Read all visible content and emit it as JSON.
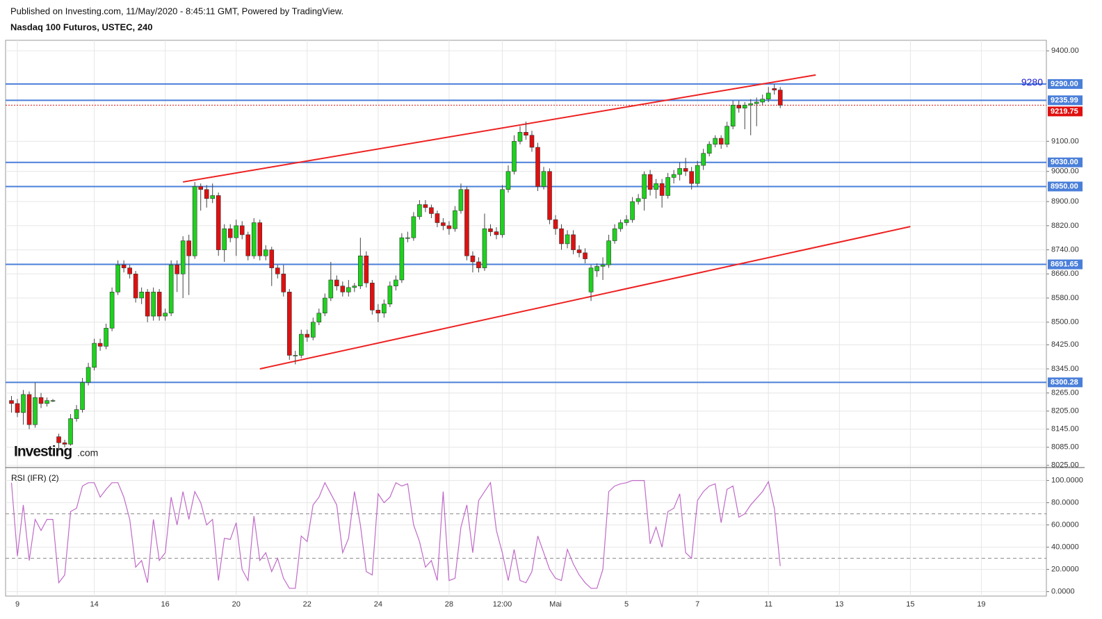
{
  "header": {
    "published": "Published on Investing.com, 11/May/2020 - 8:45:11 GMT, Powered by TradingView.",
    "symbol": "Nasdaq 100 Futuros, USTEC, 240",
    "logo": "Investing",
    "logo_suffix": ".com"
  },
  "chart_data": [
    {
      "type": "candlestick",
      "up_color": "#1ed21e",
      "down_color": "#e01010",
      "grid": true,
      "xlim": [
        -1,
        175
      ],
      "xticks": [
        {
          "value": 1,
          "label": "9"
        },
        {
          "value": 14,
          "label": "14"
        },
        {
          "value": 26,
          "label": "16"
        },
        {
          "value": 38,
          "label": "20"
        },
        {
          "value": 50,
          "label": "22"
        },
        {
          "value": 62,
          "label": "24"
        },
        {
          "value": 74,
          "label": "28"
        },
        {
          "value": 83,
          "label": "12:00"
        },
        {
          "value": 92,
          "label": "Mai"
        },
        {
          "value": 104,
          "label": "5"
        },
        {
          "value": 116,
          "label": "7"
        },
        {
          "value": 128,
          "label": "11"
        },
        {
          "value": 140,
          "label": "13"
        },
        {
          "value": 152,
          "label": "15"
        },
        {
          "value": 164,
          "label": "19"
        }
      ],
      "ylim": [
        8020,
        9435
      ],
      "yticks": [
        {
          "value": 9400,
          "label": "9400.00"
        },
        {
          "value": 9100,
          "label": "9100.00"
        },
        {
          "value": 9000,
          "label": "9000.00"
        },
        {
          "value": 8900,
          "label": "8900.00"
        },
        {
          "value": 8820,
          "label": "8820.00"
        },
        {
          "value": 8740,
          "label": "8740.00"
        },
        {
          "value": 8660,
          "label": "8660.00"
        },
        {
          "value": 8580,
          "label": "8580.00"
        },
        {
          "value": 8500,
          "label": "8500.00"
        },
        {
          "value": 8425,
          "label": "8425.00"
        },
        {
          "value": 8345,
          "label": "8345.00"
        },
        {
          "value": 8265,
          "label": "8265.00"
        },
        {
          "value": 8205,
          "label": "8205.00"
        },
        {
          "value": 8145,
          "label": "8145.00"
        },
        {
          "value": 8085,
          "label": "8085.00"
        },
        {
          "value": 8025,
          "label": "8025.00"
        }
      ],
      "levels": [
        {
          "value": 9290,
          "label": "9290.00"
        },
        {
          "value": 9235.99,
          "label": "9235.99"
        },
        {
          "value": 9030,
          "label": "9030.00"
        },
        {
          "value": 8950,
          "label": "8950.00"
        },
        {
          "value": 8691.65,
          "label": "8691.65"
        },
        {
          "value": 8300.28,
          "label": "8300.28"
        }
      ],
      "level_color": "#4a7fd9",
      "last_price": {
        "value": 9219.75,
        "label": "9219.75"
      },
      "annotation": {
        "text": "9280",
        "value": 9280
      },
      "trendlines": [
        {
          "color": "#ee2020",
          "x": [
            29,
            136
          ],
          "y": [
            8965,
            9320
          ]
        },
        {
          "color": "#ee2020",
          "x": [
            42,
            152
          ],
          "y": [
            8345,
            8817
          ]
        }
      ],
      "candles": [
        [
          8240,
          8255,
          8200,
          8230
        ],
        [
          8230,
          8245,
          8185,
          8200
        ],
        [
          8200,
          8275,
          8160,
          8260
        ],
        [
          8260,
          8270,
          8145,
          8160
        ],
        [
          8160,
          8300,
          8150,
          8250
        ],
        [
          8250,
          8265,
          8215,
          8230
        ],
        [
          8230,
          8250,
          8220,
          8240
        ],
        [
          8240,
          8245,
          8235,
          8240
        ],
        [
          8120,
          8130,
          8080,
          8100
        ],
        [
          8100,
          8110,
          8085,
          8095
        ],
        [
          8095,
          8195,
          8090,
          8180
        ],
        [
          8180,
          8225,
          8170,
          8210
        ],
        [
          8210,
          8315,
          8200,
          8300
        ],
        [
          8300,
          8365,
          8290,
          8350
        ],
        [
          8350,
          8445,
          8340,
          8430
        ],
        [
          8430,
          8445,
          8405,
          8420
        ],
        [
          8420,
          8495,
          8410,
          8480
        ],
        [
          8480,
          8615,
          8470,
          8600
        ],
        [
          8600,
          8705,
          8590,
          8690
        ],
        [
          8690,
          8705,
          8665,
          8680
        ],
        [
          8680,
          8690,
          8645,
          8660
        ],
        [
          8660,
          8670,
          8565,
          8580
        ],
        [
          8580,
          8615,
          8560,
          8600
        ],
        [
          8600,
          8610,
          8500,
          8520
        ],
        [
          8520,
          8615,
          8505,
          8600
        ],
        [
          8600,
          8610,
          8505,
          8520
        ],
        [
          8520,
          8545,
          8505,
          8530
        ],
        [
          8530,
          8705,
          8520,
          8690
        ],
        [
          8690,
          8705,
          8600,
          8660
        ],
        [
          8660,
          8785,
          8580,
          8770
        ],
        [
          8770,
          8790,
          8590,
          8720
        ],
        [
          8720,
          8965,
          8710,
          8950
        ],
        [
          8950,
          8960,
          8870,
          8940
        ],
        [
          8940,
          8955,
          8880,
          8910
        ],
        [
          8910,
          8960,
          8895,
          8920
        ],
        [
          8920,
          8930,
          8720,
          8740
        ],
        [
          8740,
          8825,
          8700,
          8810
        ],
        [
          8810,
          8825,
          8765,
          8780
        ],
        [
          8780,
          8840,
          8720,
          8820
        ],
        [
          8820,
          8835,
          8775,
          8790
        ],
        [
          8790,
          8800,
          8705,
          8720
        ],
        [
          8720,
          8845,
          8710,
          8830
        ],
        [
          8830,
          8840,
          8705,
          8720
        ],
        [
          8720,
          8755,
          8705,
          8740
        ],
        [
          8740,
          8750,
          8620,
          8680
        ],
        [
          8680,
          8690,
          8645,
          8660
        ],
        [
          8660,
          8690,
          8585,
          8600
        ],
        [
          8600,
          8610,
          8375,
          8390
        ],
        [
          8390,
          8405,
          8360,
          8390
        ],
        [
          8390,
          8475,
          8380,
          8460
        ],
        [
          8460,
          8475,
          8435,
          8450
        ],
        [
          8450,
          8515,
          8440,
          8500
        ],
        [
          8500,
          8545,
          8490,
          8530
        ],
        [
          8530,
          8595,
          8520,
          8580
        ],
        [
          8580,
          8700,
          8570,
          8640
        ],
        [
          8640,
          8655,
          8605,
          8620
        ],
        [
          8620,
          8635,
          8585,
          8600
        ],
        [
          8600,
          8640,
          8585,
          8615
        ],
        [
          8615,
          8630,
          8600,
          8620
        ],
        [
          8620,
          8780,
          8610,
          8720
        ],
        [
          8720,
          8735,
          8615,
          8630
        ],
        [
          8630,
          8640,
          8525,
          8540
        ],
        [
          8540,
          8560,
          8500,
          8530
        ],
        [
          8530,
          8575,
          8515,
          8560
        ],
        [
          8560,
          8635,
          8550,
          8620
        ],
        [
          8620,
          8655,
          8605,
          8640
        ],
        [
          8640,
          8795,
          8630,
          8780
        ],
        [
          8780,
          8800,
          8765,
          8780
        ],
        [
          8780,
          8865,
          8770,
          8850
        ],
        [
          8850,
          8905,
          8840,
          8890
        ],
        [
          8890,
          8905,
          8865,
          8880
        ],
        [
          8880,
          8890,
          8845,
          8860
        ],
        [
          8860,
          8870,
          8815,
          8830
        ],
        [
          8830,
          8845,
          8805,
          8820
        ],
        [
          8820,
          8835,
          8790,
          8810
        ],
        [
          8810,
          8885,
          8800,
          8870
        ],
        [
          8870,
          8960,
          8860,
          8940
        ],
        [
          8940,
          8950,
          8705,
          8720
        ],
        [
          8720,
          8735,
          8665,
          8700
        ],
        [
          8700,
          8715,
          8665,
          8680
        ],
        [
          8680,
          8860,
          8670,
          8810
        ],
        [
          8810,
          8825,
          8785,
          8800
        ],
        [
          8800,
          8815,
          8775,
          8790
        ],
        [
          8790,
          8955,
          8780,
          8940
        ],
        [
          8940,
          9020,
          8930,
          9000
        ],
        [
          9000,
          9120,
          8990,
          9100
        ],
        [
          9100,
          9150,
          9090,
          9130
        ],
        [
          9130,
          9165,
          9105,
          9120
        ],
        [
          9120,
          9135,
          9065,
          9080
        ],
        [
          9080,
          9095,
          8935,
          8950
        ],
        [
          8950,
          9015,
          8940,
          9000
        ],
        [
          9000,
          9010,
          8825,
          8840
        ],
        [
          8840,
          8855,
          8790,
          8810
        ],
        [
          8810,
          8825,
          8740,
          8760
        ],
        [
          8760,
          8805,
          8745,
          8790
        ],
        [
          8790,
          8805,
          8725,
          8740
        ],
        [
          8740,
          8755,
          8715,
          8730
        ],
        [
          8730,
          8745,
          8695,
          8710
        ],
        [
          8600,
          8690,
          8570,
          8680
        ],
        [
          8670,
          8695,
          8650,
          8685
        ],
        [
          8685,
          8715,
          8640,
          8690
        ],
        [
          8690,
          8790,
          8680,
          8770
        ],
        [
          8770,
          8825,
          8760,
          8810
        ],
        [
          8810,
          8840,
          8800,
          8830
        ],
        [
          8830,
          8855,
          8820,
          8840
        ],
        [
          8840,
          8915,
          8830,
          8900
        ],
        [
          8900,
          8925,
          8890,
          8910
        ],
        [
          8910,
          9000,
          8870,
          8990
        ],
        [
          8990,
          9005,
          8920,
          8940
        ],
        [
          8940,
          8975,
          8910,
          8960
        ],
        [
          8960,
          8975,
          8880,
          8920
        ],
        [
          8920,
          8995,
          8910,
          8980
        ],
        [
          8980,
          9005,
          8960,
          8990
        ],
        [
          8990,
          9030,
          8970,
          9010
        ],
        [
          9010,
          9045,
          8985,
          9000
        ],
        [
          9000,
          9015,
          8940,
          8960
        ],
        [
          8960,
          9035,
          8950,
          9020
        ],
        [
          9020,
          9075,
          9005,
          9060
        ],
        [
          9060,
          9100,
          9050,
          9090
        ],
        [
          9090,
          9120,
          9080,
          9110
        ],
        [
          9110,
          9120,
          9075,
          9090
        ],
        [
          9090,
          9165,
          9080,
          9150
        ],
        [
          9150,
          9235,
          9140,
          9220
        ],
        [
          9220,
          9235,
          9195,
          9210
        ],
        [
          9210,
          9230,
          9140,
          9220
        ],
        [
          9220,
          9240,
          9120,
          9225
        ],
        [
          9225,
          9245,
          9150,
          9230
        ],
        [
          9230,
          9255,
          9220,
          9240
        ],
        [
          9240,
          9280,
          9230,
          9260
        ],
        [
          9275,
          9290,
          9255,
          9270
        ],
        [
          9270,
          9280,
          9210,
          9219.75
        ]
      ]
    },
    {
      "type": "line",
      "title": "RSI (IFR) (2)",
      "color": "#c06ac8",
      "ylim": [
        -4,
        111
      ],
      "yticks": [
        {
          "value": 0,
          "label": "0.0000"
        },
        {
          "value": 20,
          "label": "20.0000"
        },
        {
          "value": 40,
          "label": "40.0000"
        },
        {
          "value": 60,
          "label": "60.0000"
        },
        {
          "value": 80,
          "label": "80.0000"
        },
        {
          "value": 100,
          "label": "100.0000"
        }
      ],
      "bands": [
        70,
        30
      ],
      "values": [
        98,
        32,
        78,
        28,
        65,
        55,
        65,
        65,
        8,
        15,
        72,
        75,
        95,
        98,
        98,
        85,
        92,
        98,
        98,
        85,
        65,
        22,
        28,
        8,
        65,
        28,
        35,
        85,
        60,
        90,
        65,
        90,
        80,
        60,
        65,
        10,
        48,
        47,
        62,
        20,
        10,
        68,
        28,
        35,
        18,
        30,
        12,
        3,
        3,
        50,
        45,
        78,
        85,
        98,
        88,
        78,
        35,
        48,
        90,
        60,
        18,
        15,
        88,
        80,
        85,
        98,
        95,
        97,
        60,
        45,
        22,
        28,
        10,
        90,
        10,
        12,
        58,
        78,
        35,
        82,
        90,
        98,
        55,
        35,
        10,
        38,
        10,
        8,
        18,
        50,
        35,
        20,
        12,
        10,
        38,
        25,
        15,
        8,
        3,
        3,
        20,
        90,
        95,
        97,
        98,
        100,
        100,
        100,
        43,
        58,
        40,
        72,
        75,
        88,
        35,
        30,
        82,
        90,
        95,
        97,
        62,
        92,
        95,
        67,
        70,
        78,
        84,
        90,
        99,
        75,
        23
      ]
    }
  ]
}
